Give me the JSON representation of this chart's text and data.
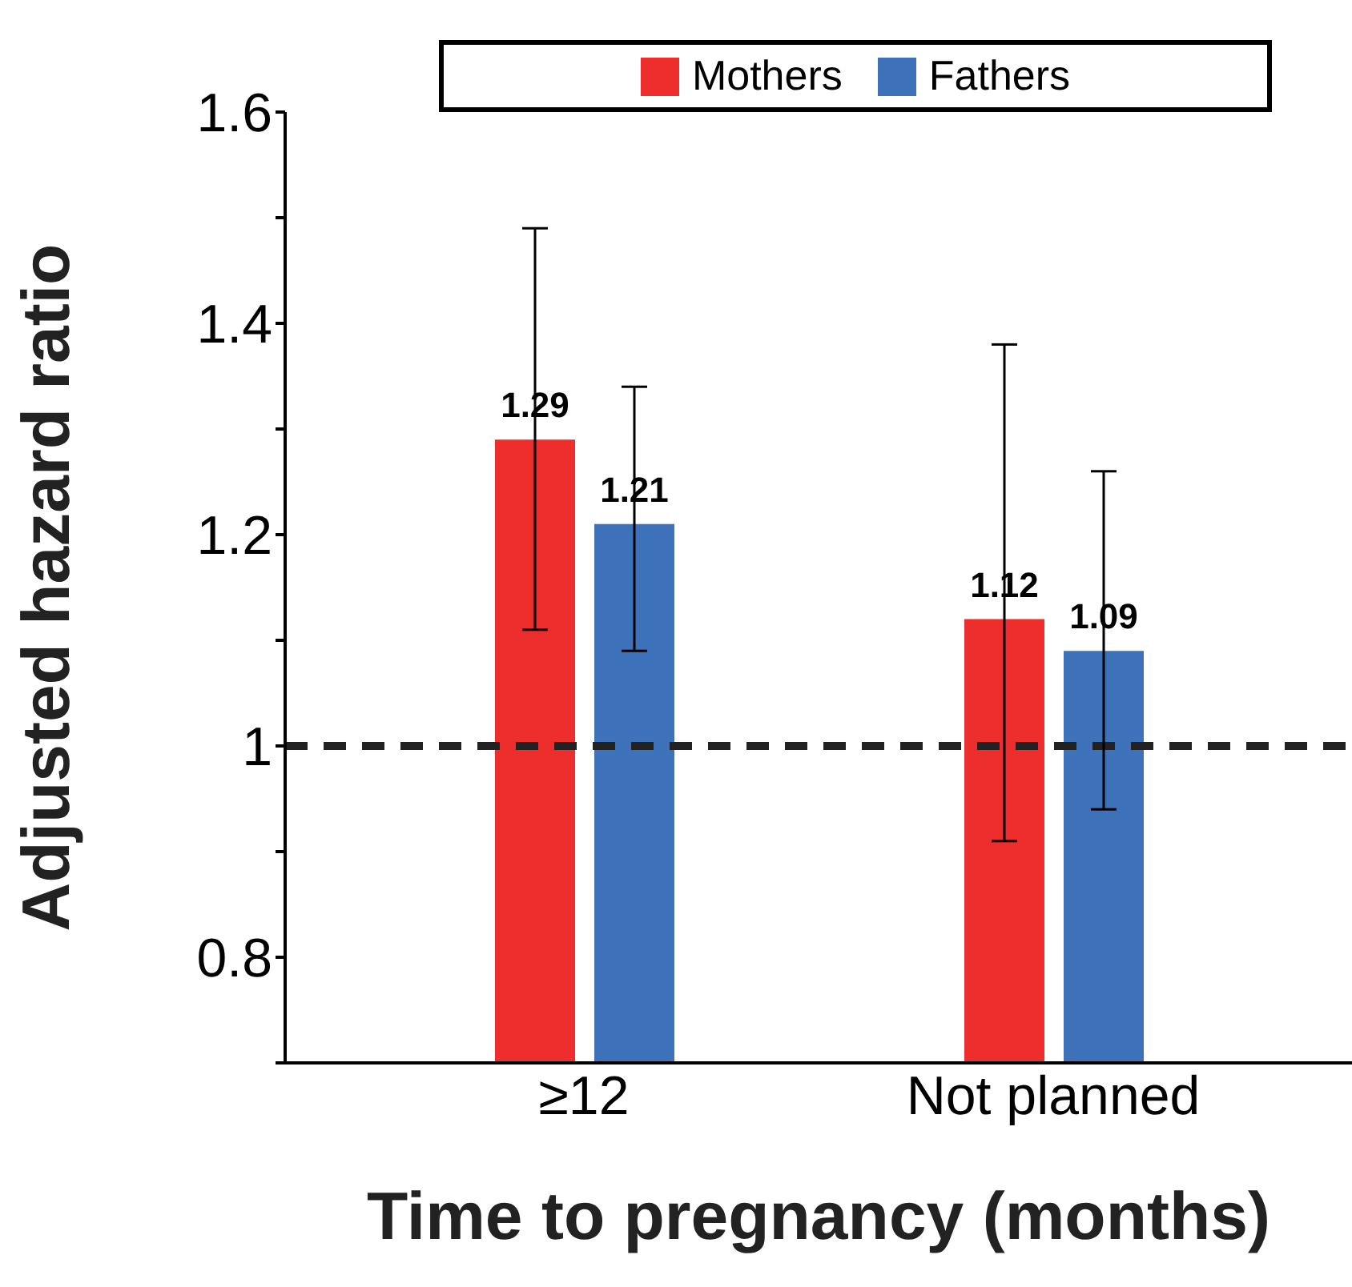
{
  "chart_data": {
    "type": "bar",
    "xlabel": "Time to pregnancy (months)",
    "ylabel": "Adjusted hazard ratio",
    "categories": [
      "≥12",
      "Not planned"
    ],
    "series": [
      {
        "name": "Mothers",
        "color": "#ee2d2d",
        "values": [
          1.29,
          1.12
        ],
        "errors": [
          [
            1.11,
            1.49
          ],
          [
            0.91,
            1.38
          ]
        ]
      },
      {
        "name": "Fathers",
        "color": "#3d72ba",
        "values": [
          1.21,
          1.09
        ],
        "errors": [
          [
            1.09,
            1.34
          ],
          [
            0.94,
            1.26
          ]
        ]
      }
    ],
    "ylim": [
      0.7,
      1.6
    ],
    "yticks": [
      {
        "value": 0.7,
        "label": null
      },
      0.8,
      {
        "value": 0.9,
        "label": null
      },
      1,
      {
        "value": 1.1,
        "label": null
      },
      1.2,
      {
        "value": 1.3,
        "label": null
      },
      1.4,
      {
        "value": 1.5,
        "label": null
      },
      1.6
    ],
    "ref_lines": [
      {
        "axis": "y",
        "value": 1,
        "color": "#222222",
        "line_style": "dashed"
      }
    ],
    "data_labels": true,
    "grid": false,
    "legend": "top right"
  }
}
